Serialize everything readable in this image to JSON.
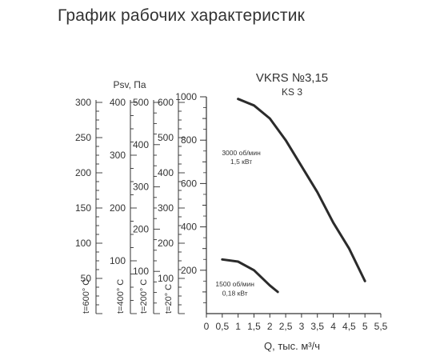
{
  "page": {
    "title": "График рабочих характеристик"
  },
  "chart_data": {
    "type": "line",
    "model": "VKRS №3,15",
    "submodel": "KS 3",
    "xlabel": "Q, тыс. м³/ч",
    "ylabel": "Psv, Па",
    "xlim": [
      0,
      5.5
    ],
    "ylim": [
      0,
      1000
    ],
    "x_ticks": [
      "0",
      "0,5",
      "1",
      "1,5",
      "2",
      "2,5",
      "3",
      "3,5",
      "4",
      "4,5",
      "5",
      "5,5"
    ],
    "y_ticks": [
      "200",
      "400",
      "600",
      "800",
      "1000"
    ],
    "grid": false,
    "series": [
      {
        "name_line1": "3000 об/мин",
        "name_line2": "1,5 кВт",
        "points": [
          [
            1.0,
            990
          ],
          [
            1.5,
            960
          ],
          [
            2.0,
            900
          ],
          [
            2.5,
            800
          ],
          [
            3.0,
            680
          ],
          [
            3.5,
            560
          ],
          [
            4.0,
            420
          ],
          [
            4.5,
            300
          ],
          [
            5.0,
            150
          ]
        ]
      },
      {
        "name_line1": "1500 об/мин",
        "name_line2": "0,18 кВт",
        "points": [
          [
            0.5,
            250
          ],
          [
            1.0,
            240
          ],
          [
            1.5,
            200
          ],
          [
            2.0,
            130
          ],
          [
            2.25,
            100
          ]
        ]
      }
    ],
    "temp_scales": [
      {
        "label": "t=600° C",
        "max": 300,
        "labels": [
          "50",
          "100",
          "150",
          "200",
          "250",
          "300"
        ]
      },
      {
        "label": "t=400° C",
        "max": 400,
        "labels": [
          "100",
          "200",
          "300",
          "400"
        ]
      },
      {
        "label": "t=200° C",
        "max": 500,
        "labels": [
          "100",
          "200",
          "300",
          "400",
          "500"
        ]
      },
      {
        "label": "t=20° C",
        "max": 600,
        "labels": [
          "100",
          "200",
          "300",
          "400",
          "500",
          "600"
        ]
      }
    ]
  }
}
